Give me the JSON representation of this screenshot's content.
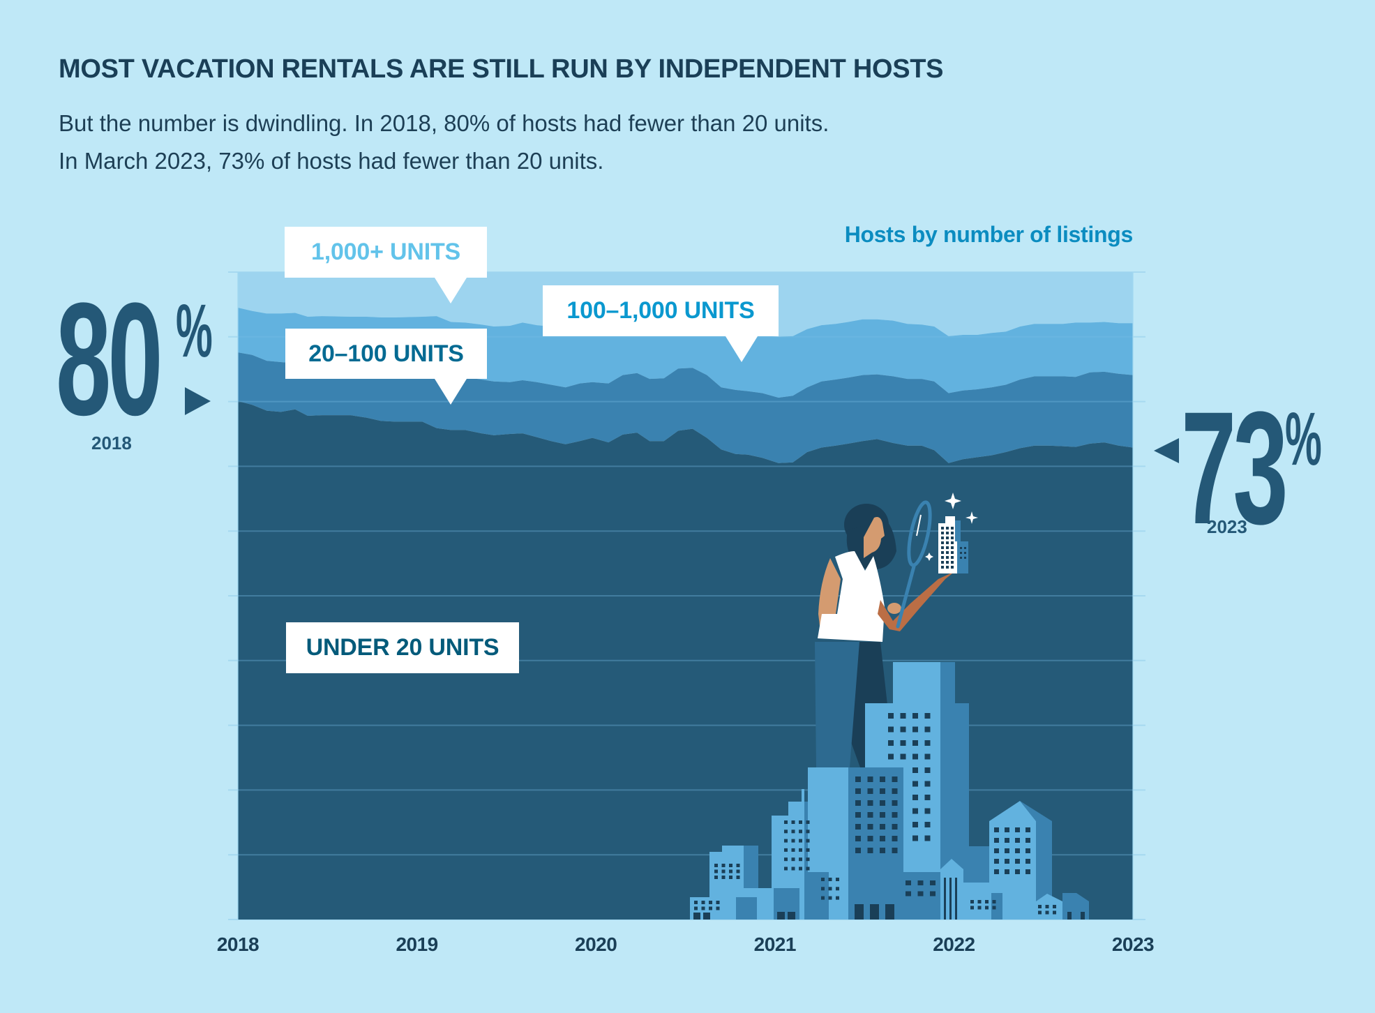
{
  "header": {
    "title": "MOST VACATION RENTALS ARE STILL RUN BY INDEPENDENT HOSTS",
    "subtitle_lines": [
      "But the number is dwindling. In 2018, 80% of hosts had fewer than 20 units.",
      "In March 2023, 73% of hosts had fewer than 20 units."
    ]
  },
  "colors": {
    "background": "#bfe8f7",
    "layer_1000_plus": "#9dd4ef",
    "layer_100_1000": "#62b2df",
    "layer_20_100": "#3a82b0",
    "layer_under_20": "#255a78",
    "stat_text": "#245877"
  },
  "stats": {
    "start": {
      "value": "80",
      "unit": "%",
      "year": "2018",
      "icon": "arrow-right-icon"
    },
    "end": {
      "value": "73",
      "unit": "%",
      "year": "2023",
      "icon": "arrow-left-icon"
    }
  },
  "illustration": {
    "description": "woman-with-magnifying-glass-inspecting-miniature-building-over-cityscape",
    "icons": [
      "person-icon",
      "magnifying-glass-icon",
      "building-icon",
      "sparkle-icon",
      "cityscape-icon"
    ]
  },
  "chart_data": {
    "type": "area",
    "stacked": true,
    "title": "Hosts by number of listings",
    "xlabel": "",
    "ylabel": "",
    "xlim": [
      2018,
      2023
    ],
    "ylim": [
      0,
      100
    ],
    "y_unit": "% of hosts (cumulative)",
    "grid": true,
    "grid_step": 10,
    "x_ticks": [
      "2018",
      "2019",
      "2020",
      "2021",
      "2022",
      "2023"
    ],
    "x_tick_values": [
      2018,
      2019,
      2020,
      2021,
      2022,
      2023
    ],
    "series_labels": {
      "under_20": "UNDER 20 UNITS",
      "20_100": "20–100 UNITS",
      "100_1000": "100–1,000 UNITS",
      "1000_plus": "1,000+ UNITS"
    },
    "series_order_bottom_to_top": [
      "under_20",
      "20_100",
      "100_1000",
      "1000_plus"
    ],
    "x": [
      2018.0,
      2018.08,
      2018.16,
      2018.24,
      2018.32,
      2018.39,
      2018.47,
      2018.63,
      2018.72,
      2018.8,
      2018.88,
      2019.03,
      2019.11,
      2019.19,
      2019.27,
      2019.36,
      2019.43,
      2019.52,
      2019.59,
      2019.67,
      2019.75,
      2019.83,
      2019.91,
      2019.98,
      2020.07,
      2020.15,
      2020.23,
      2020.3,
      2020.38,
      2020.46,
      2020.54,
      2020.62,
      2020.7,
      2020.78,
      2020.85,
      2020.93,
      2021.02,
      2021.1,
      2021.18,
      2021.26,
      2021.34,
      2021.41,
      2021.49,
      2021.57,
      2021.66,
      2021.74,
      2021.82,
      2021.89,
      2021.97,
      2022.05,
      2022.13,
      2022.21,
      2022.29,
      2022.37,
      2022.45,
      2022.53,
      2022.61,
      2022.68,
      2022.76,
      2022.84,
      2022.92,
      2023.0
    ],
    "cumulative": {
      "under_20": [
        80.1,
        79.5,
        78.6,
        78.4,
        78.8,
        77.8,
        77.9,
        77.9,
        77.5,
        77.0,
        76.9,
        76.9,
        75.9,
        75.6,
        75.6,
        75.1,
        74.8,
        75.0,
        75.1,
        74.5,
        73.9,
        73.4,
        73.9,
        74.4,
        73.7,
        74.9,
        75.2,
        73.9,
        73.9,
        75.5,
        75.8,
        74.4,
        72.6,
        71.9,
        71.8,
        71.3,
        70.5,
        70.6,
        72.2,
        72.9,
        73.2,
        73.5,
        73.9,
        74.2,
        73.6,
        73.2,
        73.2,
        72.5,
        70.5,
        71.1,
        71.4,
        71.7,
        72.2,
        72.8,
        73.2,
        73.2,
        73.1,
        73.0,
        73.5,
        73.7,
        73.2,
        72.9
      ],
      "under_100": [
        87.6,
        87.2,
        86.3,
        86.1,
        85.9,
        85.6,
        85.3,
        85.1,
        84.9,
        84.7,
        84.6,
        84.5,
        84.3,
        84.1,
        83.8,
        83.4,
        83.1,
        83.0,
        83.3,
        83.0,
        82.6,
        82.2,
        82.8,
        83.0,
        82.8,
        84.1,
        84.4,
        83.5,
        83.6,
        85.1,
        85.2,
        84.1,
        82.2,
        81.8,
        81.6,
        81.3,
        80.6,
        80.9,
        82.2,
        83.1,
        83.4,
        83.7,
        84.1,
        84.2,
        83.9,
        83.5,
        83.5,
        83.1,
        81.3,
        81.7,
        81.9,
        82.2,
        82.6,
        83.4,
        83.9,
        83.9,
        83.9,
        83.8,
        84.5,
        84.6,
        84.3,
        84.1
      ],
      "under_1000": [
        94.5,
        94.0,
        93.6,
        93.6,
        93.7,
        93.1,
        93.2,
        93.1,
        93.1,
        93.0,
        93.0,
        93.1,
        93.2,
        92.3,
        92.2,
        91.9,
        91.6,
        91.7,
        92.2,
        91.8,
        91.6,
        91.4,
        91.3,
        91.2,
        91.1,
        91.0,
        90.9,
        90.7,
        90.6,
        90.5,
        90.4,
        90.3,
        90.3,
        90.2,
        90.2,
        90.2,
        90.0,
        90.1,
        91.2,
        91.8,
        92.0,
        92.3,
        92.7,
        92.7,
        92.5,
        92.0,
        91.9,
        91.6,
        90.1,
        90.3,
        90.3,
        90.6,
        90.8,
        91.6,
        92.0,
        92.0,
        92.0,
        92.2,
        92.2,
        92.3,
        92.1,
        92.1
      ]
    },
    "annotations": [
      {
        "text": "80%",
        "x": 2018,
        "y": 80,
        "label": "2018"
      },
      {
        "text": "73%",
        "x": 2023,
        "y": 73,
        "label": "2023"
      }
    ]
  }
}
